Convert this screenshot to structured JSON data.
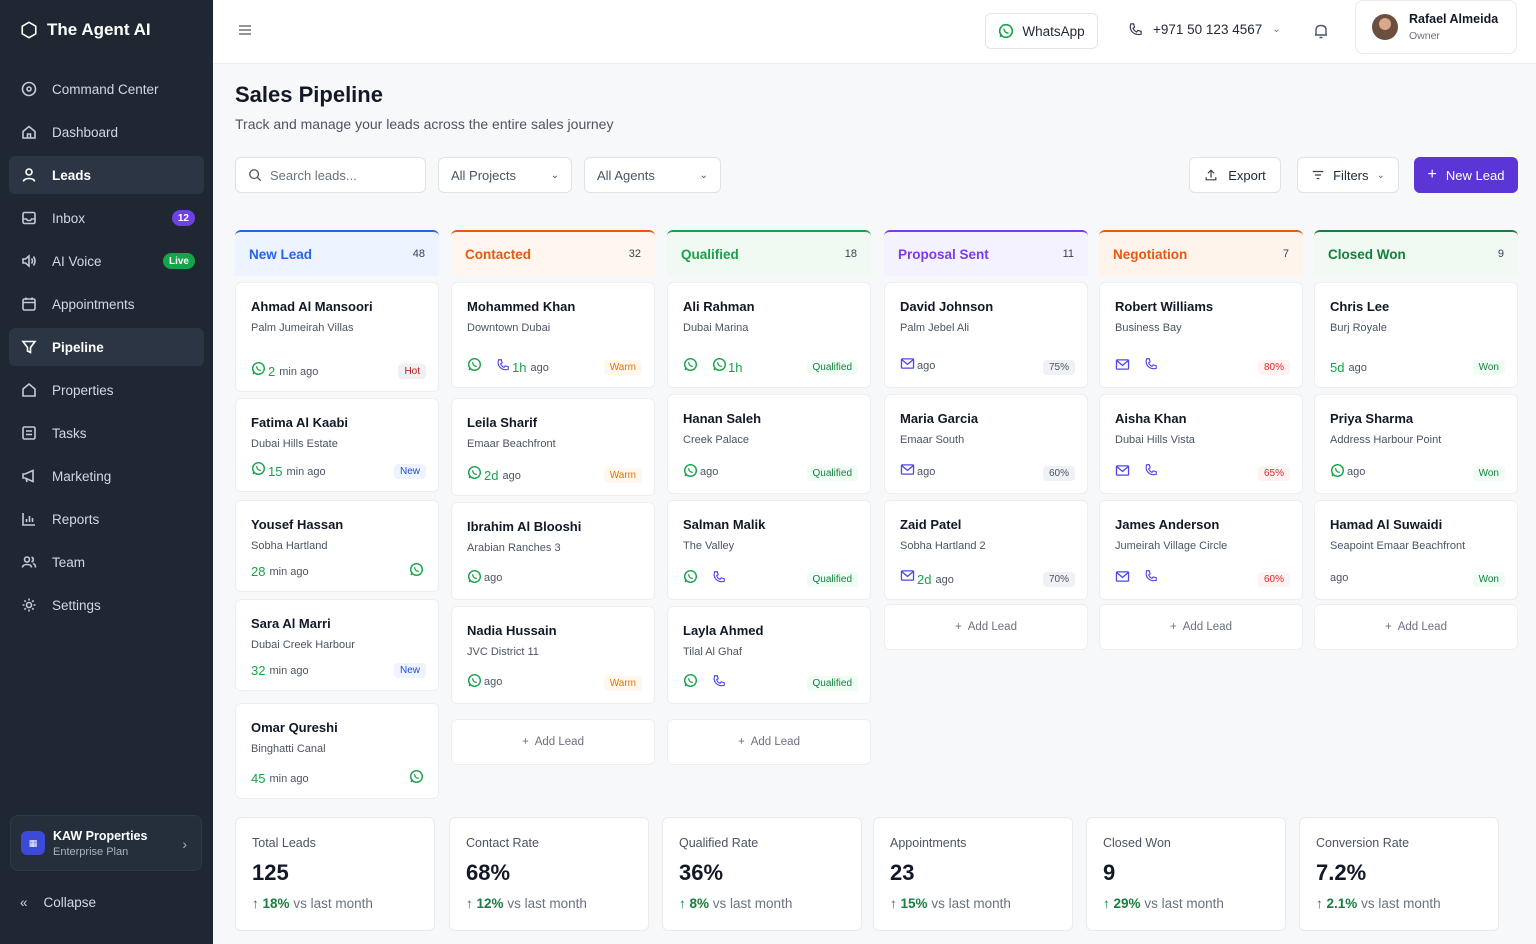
{
  "app": {
    "name": "The Agent AI"
  },
  "sidebar": {
    "items": [
      {
        "label": "Command Center",
        "icon": "command-center-icon"
      },
      {
        "label": "Dashboard",
        "icon": "home-icon"
      },
      {
        "label": "Leads",
        "icon": "user-icon",
        "active": true
      },
      {
        "label": "Inbox",
        "icon": "inbox-icon",
        "badge": "12"
      },
      {
        "label": "AI Voice",
        "icon": "voice-icon",
        "badge": "Live"
      },
      {
        "label": "Appointments",
        "icon": "calendar-icon"
      },
      {
        "label": "Pipeline",
        "icon": "filter-icon",
        "active": true
      },
      {
        "label": "Properties",
        "icon": "house-icon"
      },
      {
        "label": "Tasks",
        "icon": "tasks-icon"
      },
      {
        "label": "Marketing",
        "icon": "megaphone-icon"
      },
      {
        "label": "Reports",
        "icon": "chart-icon"
      },
      {
        "label": "Team",
        "icon": "team-icon"
      },
      {
        "label": "Settings",
        "icon": "gear-icon"
      }
    ],
    "org_name": "KAW Properties",
    "org_plan": "Enterprise Plan",
    "collapse_label": "Collapse"
  },
  "topbar": {
    "whatsapp_label": "WhatsApp",
    "phone": "+971 50 123 4567",
    "user_name": "Rafael Almeida",
    "user_role": "Owner"
  },
  "page": {
    "title": "Sales Pipeline",
    "subtitle": "Track and manage your leads across the entire sales journey"
  },
  "toolbar": {
    "search_placeholder": "Search leads...",
    "project_select": "All Projects",
    "agent_select": "All Agents",
    "export_label": "Export",
    "filters_label": "Filters",
    "new_lead_label": "New Lead"
  },
  "add_lead_label": "Add Lead",
  "columns": [
    {
      "title": "New Lead",
      "count": "48",
      "color": "#2563eb",
      "bg": "#eef4ff",
      "cards": [
        {
          "name": "Ahmad Al Mansoori",
          "location": "Palm Jumeirah Villas",
          "num": "2",
          "time": "min ago",
          "tag": "Hot"
        },
        {
          "name": "Fatima Al Kaabi",
          "location": "Dubai Hills Estate",
          "num": "15",
          "time": "min ago",
          "tag": "New"
        },
        {
          "name": "Yousef Hassan",
          "location": "Sobha Hartland",
          "num": "28",
          "time": "min ago",
          "tag": ""
        },
        {
          "name": "Sara Al Marri",
          "location": "Dubai Creek Harbour",
          "num": "32",
          "time": "min ago",
          "tag": "New"
        },
        {
          "name": "Omar Qureshi",
          "location": "Binghatti Canal",
          "num": "45",
          "time": "min ago",
          "tag": ""
        }
      ]
    },
    {
      "title": "Contacted",
      "count": "32",
      "color": "#ea580c",
      "bg": "#fff7ef",
      "cards": [
        {
          "name": "Mohammed Khan",
          "location": "Downtown Dubai",
          "num": "1h",
          "time": "ago",
          "tag": "Warm"
        },
        {
          "name": "Leila Sharif",
          "location": "Emaar Beachfront",
          "num": "2d",
          "time": "ago",
          "tag": "Warm"
        },
        {
          "name": "Ibrahim Al Blooshi",
          "location": "Arabian Ranches 3",
          "num": "",
          "time": "ago",
          "tag": ""
        },
        {
          "name": "Nadia Hussain",
          "location": "JVC District 11",
          "num": "",
          "time": "ago",
          "tag": "Warm"
        }
      ]
    },
    {
      "title": "Qualified",
      "count": "18",
      "color": "#16a34a",
      "bg": "#f0faf3",
      "cards": [
        {
          "name": "Ali Rahman",
          "location": "Dubai Marina",
          "num": "1h",
          "time": "",
          "tag": "Qualified"
        },
        {
          "name": "Hanan Saleh",
          "location": "Creek Palace",
          "num": "",
          "time": "ago",
          "tag": "Qualified"
        },
        {
          "name": "Salman Malik",
          "location": "The Valley",
          "num": "",
          "time": "",
          "tag": "Qualified"
        },
        {
          "name": "Layla Ahmed",
          "location": "Tilal Al Ghaf",
          "num": "",
          "time": "",
          "tag": "Qualified"
        }
      ]
    },
    {
      "title": "Proposal Sent",
      "count": "11",
      "color": "#7c3aed",
      "bg": "#f5f2ff",
      "cards": [
        {
          "name": "David Johnson",
          "location": "Palm Jebel Ali",
          "num": "",
          "time": "ago",
          "tag": "75%"
        },
        {
          "name": "Maria Garcia",
          "location": "Emaar South",
          "num": "",
          "time": "ago",
          "tag": "60%"
        },
        {
          "name": "Zaid Patel",
          "location": "Sobha Hartland 2",
          "num": "2d",
          "time": "ago",
          "tag": "70%"
        }
      ]
    },
    {
      "title": "Negotiation",
      "count": "7",
      "color": "#ea580c",
      "bg": "#fff4ec",
      "cards": [
        {
          "name": "Robert Williams",
          "location": "Business Bay",
          "num": "",
          "time": "",
          "tag": "80%"
        },
        {
          "name": "Aisha Khan",
          "location": "Dubai Hills Vista",
          "num": "",
          "time": "",
          "tag": "65%"
        },
        {
          "name": "James Anderson",
          "location": "Jumeirah Village Circle",
          "num": "",
          "time": "",
          "tag": "60%"
        }
      ]
    },
    {
      "title": "Closed Won",
      "count": "9",
      "color": "#15803d",
      "bg": "#f0faf3",
      "cards": [
        {
          "name": "Chris Lee",
          "location": "Burj Royale",
          "num": "5d",
          "time": "ago",
          "tag": "Won"
        },
        {
          "name": "Priya Sharma",
          "location": "Address Harbour Point",
          "num": "",
          "time": "ago",
          "tag": "Won"
        },
        {
          "name": "Hamad Al Suwaidi",
          "location": "Seapoint Emaar Beachfront",
          "num": "",
          "time": "ago",
          "tag": "Won"
        }
      ]
    }
  ],
  "stats": [
    {
      "label": "Total Leads",
      "value": "125",
      "delta": "18%",
      "suffix": "vs last month"
    },
    {
      "label": "Contact Rate",
      "value": "68%",
      "delta": "12%",
      "suffix": "vs last month"
    },
    {
      "label": "Qualified Rate",
      "value": "36%",
      "delta": "8%",
      "suffix": "vs last month"
    },
    {
      "label": "Appointments",
      "value": "23",
      "delta": "15%",
      "suffix": "vs last month"
    },
    {
      "label": "Closed Won",
      "value": "9",
      "delta": "29%",
      "suffix": "vs last month"
    },
    {
      "label": "Conversion Rate",
      "value": "7.2%",
      "delta": "2.1%",
      "suffix": "vs last month"
    }
  ]
}
